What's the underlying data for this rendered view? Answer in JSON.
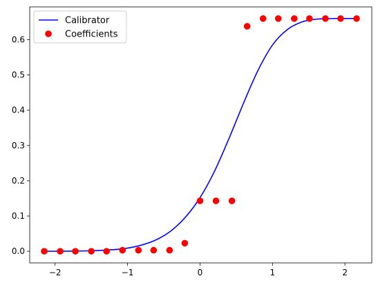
{
  "chart_data": {
    "type": "scatter",
    "title": "",
    "xlabel": "",
    "ylabel": "",
    "xlim": [
      -2.35,
      2.37
    ],
    "ylim": [
      -0.033,
      0.693
    ],
    "xticks": [
      -2,
      -1,
      0,
      1,
      2
    ],
    "xtick_labels": [
      "−2",
      "−1",
      "0",
      "1",
      "2"
    ],
    "yticks": [
      0.0,
      0.1,
      0.2,
      0.3,
      0.4,
      0.5,
      0.6
    ],
    "ytick_labels": [
      "0.0",
      "0.1",
      "0.2",
      "0.3",
      "0.4",
      "0.5",
      "0.6"
    ],
    "grid": false,
    "legend_position": "upper-left",
    "series": [
      {
        "name": "Calibrator",
        "type": "line",
        "color": "#0000ff",
        "x": [
          -2.15,
          -1.8,
          -1.5,
          -1.2,
          -1.0,
          -0.8,
          -0.6,
          -0.4,
          -0.2,
          0.0,
          0.2,
          0.4,
          0.6,
          0.8,
          1.0,
          1.2,
          1.4,
          1.6,
          1.8,
          2.15
        ],
        "y": [
          0.0,
          0.0004,
          0.0015,
          0.0045,
          0.009,
          0.018,
          0.033,
          0.058,
          0.097,
          0.152,
          0.227,
          0.32,
          0.42,
          0.513,
          0.585,
          0.628,
          0.65,
          0.658,
          0.66,
          0.66
        ]
      },
      {
        "name": "Coefficients",
        "type": "scatter",
        "color": "#ff0000",
        "x": [
          -2.15,
          -1.93,
          -1.72,
          -1.5,
          -1.29,
          -1.07,
          -0.85,
          -0.64,
          -0.42,
          -0.21,
          0.0,
          0.22,
          0.44,
          0.65,
          0.87,
          1.08,
          1.3,
          1.51,
          1.73,
          1.94,
          2.16
        ],
        "y": [
          0.0,
          0.0,
          0.0,
          0.0,
          0.0,
          0.003,
          0.003,
          0.003,
          0.003,
          0.023,
          0.143,
          0.143,
          0.143,
          0.638,
          0.66,
          0.66,
          0.66,
          0.66,
          0.66,
          0.66,
          0.66
        ]
      }
    ]
  }
}
